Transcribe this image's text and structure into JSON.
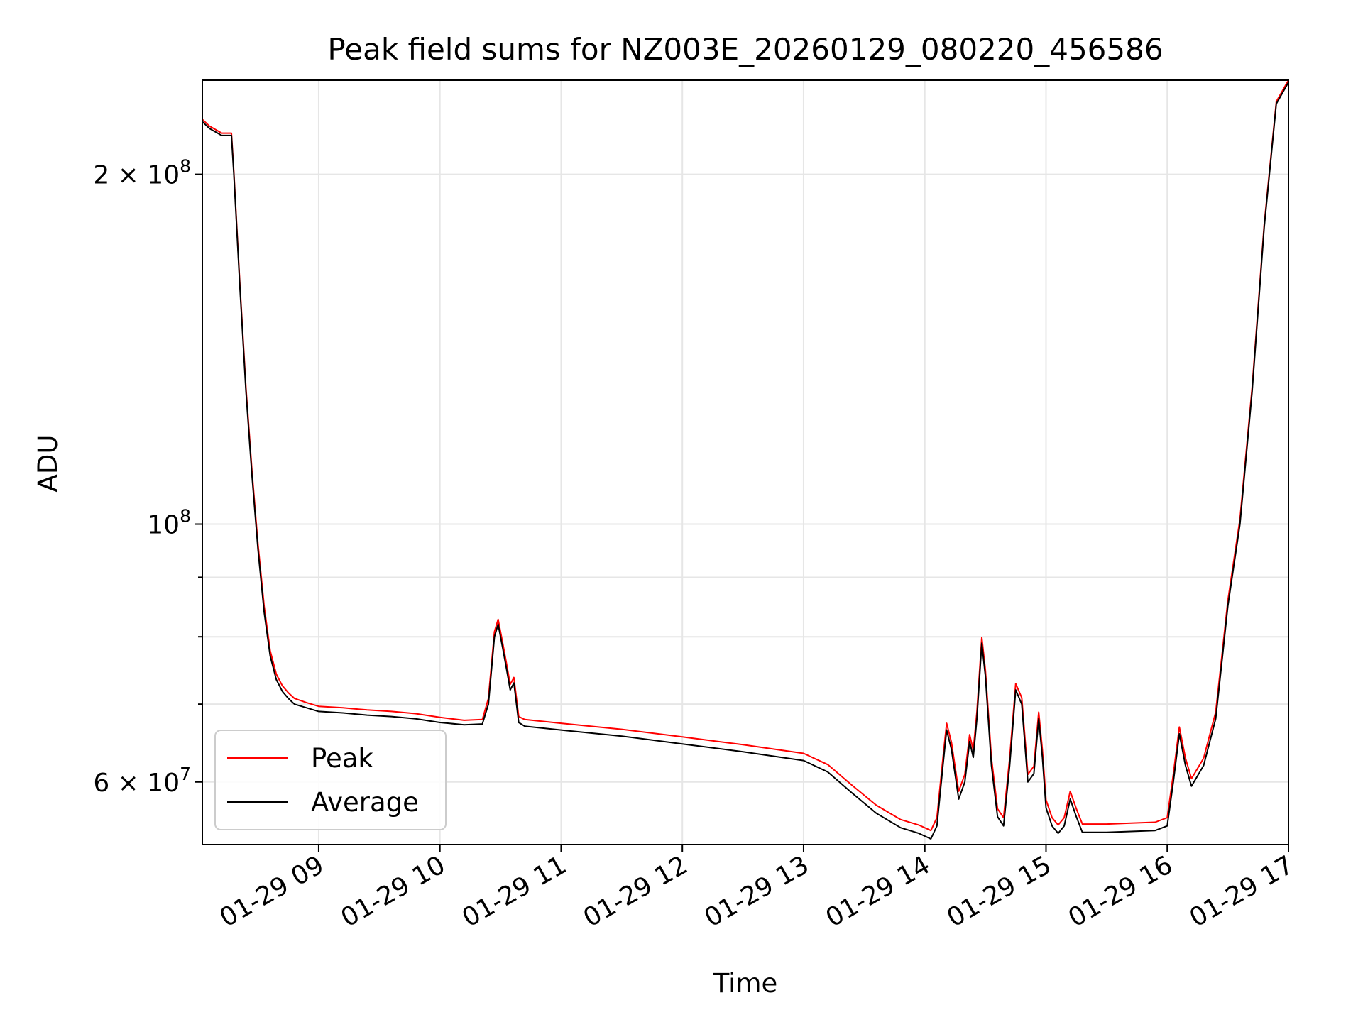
{
  "chart_data": {
    "type": "line",
    "title": "Peak field sums for NZ003E_20260129_080220_456586",
    "xlabel": "Time",
    "ylabel": "ADU",
    "yscale": "log",
    "xlim": [
      8.04,
      17.0
    ],
    "ylim": [
      53000000.0,
      241000000.0
    ],
    "x_ticks": [
      {
        "value": 9,
        "label": "01-29 09"
      },
      {
        "value": 10,
        "label": "01-29 10"
      },
      {
        "value": 11,
        "label": "01-29 11"
      },
      {
        "value": 12,
        "label": "01-29 12"
      },
      {
        "value": 13,
        "label": "01-29 13"
      },
      {
        "value": 14,
        "label": "01-29 14"
      },
      {
        "value": 15,
        "label": "01-29 15"
      },
      {
        "value": 16,
        "label": "01-29 16"
      },
      {
        "value": 17,
        "label": "01-29 17"
      }
    ],
    "y_ticks": [
      {
        "value": 200000000.0,
        "base": "2 × 10",
        "exp": "8"
      },
      {
        "value": 100000000.0,
        "base": "10",
        "exp": "8"
      },
      {
        "value": 60000000.0,
        "base": "6 × 10",
        "exp": "7"
      }
    ],
    "y_minor_ticks": [
      70000000.0,
      80000000.0,
      90000000.0
    ],
    "grid": true,
    "legend_position": "lower-left",
    "series": [
      {
        "name": "Average",
        "color": "#000000",
        "x": [
          8.04,
          8.1,
          8.2,
          8.28,
          8.3,
          8.35,
          8.4,
          8.45,
          8.5,
          8.55,
          8.6,
          8.65,
          8.7,
          8.75,
          8.8,
          8.9,
          9.0,
          9.2,
          9.4,
          9.6,
          9.8,
          10.0,
          10.2,
          10.35,
          10.4,
          10.45,
          10.48,
          10.52,
          10.55,
          10.58,
          10.61,
          10.65,
          10.7,
          11.0,
          11.5,
          12.0,
          12.5,
          13.0,
          13.2,
          13.4,
          13.6,
          13.8,
          13.95,
          14.05,
          14.1,
          14.15,
          14.18,
          14.22,
          14.28,
          14.33,
          14.37,
          14.4,
          14.43,
          14.47,
          14.5,
          14.55,
          14.6,
          14.65,
          14.7,
          14.75,
          14.8,
          14.85,
          14.9,
          14.94,
          14.97,
          15.0,
          15.05,
          15.1,
          15.15,
          15.2,
          15.25,
          15.3,
          15.5,
          15.7,
          15.9,
          16.0,
          16.05,
          16.1,
          16.15,
          16.2,
          16.3,
          16.4,
          16.45,
          16.5,
          16.6,
          16.7,
          16.8,
          16.9,
          17.0
        ],
        "values": [
          222000000.0,
          219000000.0,
          216000000.0,
          216000000.0,
          200000000.0,
          160000000.0,
          130000000.0,
          110000000.0,
          95000000.0,
          84000000.0,
          77000000.0,
          73500000.0,
          71800000.0,
          70800000.0,
          70000000.0,
          69500000.0,
          69000000.0,
          68800000.0,
          68500000.0,
          68300000.0,
          68000000.0,
          67500000.0,
          67200000.0,
          67300000.0,
          70000000.0,
          80000000.0,
          82000000.0,
          78000000.0,
          75000000.0,
          72000000.0,
          73000000.0,
          67500000.0,
          67000000.0,
          66500000.0,
          65700000.0,
          64700000.0,
          63700000.0,
          62600000.0,
          61200000.0,
          58700000.0,
          56400000.0,
          54800000.0,
          54200000.0,
          53600000.0,
          55000000.0,
          62000000.0,
          66500000.0,
          64000000.0,
          58000000.0,
          60000000.0,
          65000000.0,
          63000000.0,
          68000000.0,
          79000000.0,
          74000000.0,
          62000000.0,
          56000000.0,
          55000000.0,
          62000000.0,
          72000000.0,
          70000000.0,
          60000000.0,
          61000000.0,
          68000000.0,
          63000000.0,
          57000000.0,
          55000000.0,
          54200000.0,
          55000000.0,
          58000000.0,
          56000000.0,
          54300000.0,
          54300000.0,
          54400000.0,
          54500000.0,
          55000000.0,
          60000000.0,
          66000000.0,
          62000000.0,
          59500000.0,
          62000000.0,
          68000000.0,
          76000000.0,
          85000000.0,
          100000000.0,
          130000000.0,
          180000000.0,
          230000000.0,
          240000000.0
        ]
      },
      {
        "name": "Peak",
        "color": "#ff0000",
        "x": [
          8.04,
          8.1,
          8.2,
          8.28,
          8.3,
          8.35,
          8.4,
          8.45,
          8.5,
          8.55,
          8.6,
          8.65,
          8.7,
          8.75,
          8.8,
          8.9,
          9.0,
          9.2,
          9.4,
          9.6,
          9.8,
          10.0,
          10.2,
          10.35,
          10.4,
          10.45,
          10.48,
          10.52,
          10.55,
          10.58,
          10.61,
          10.65,
          10.7,
          11.0,
          11.5,
          12.0,
          12.5,
          13.0,
          13.2,
          13.4,
          13.6,
          13.8,
          13.95,
          14.05,
          14.1,
          14.15,
          14.18,
          14.22,
          14.28,
          14.33,
          14.37,
          14.4,
          14.43,
          14.47,
          14.5,
          14.55,
          14.6,
          14.65,
          14.7,
          14.75,
          14.8,
          14.85,
          14.9,
          14.94,
          14.97,
          15.0,
          15.05,
          15.1,
          15.15,
          15.2,
          15.25,
          15.3,
          15.5,
          15.7,
          15.9,
          16.0,
          16.05,
          16.1,
          16.15,
          16.2,
          16.3,
          16.4,
          16.45,
          16.5,
          16.6,
          16.7,
          16.8,
          16.9,
          17.0
        ],
        "values": [
          223000000.0,
          220000000.0,
          217000000.0,
          217000000.0,
          201000000.0,
          161000000.0,
          131000000.0,
          111000000.0,
          96000000.0,
          85000000.0,
          77800000.0,
          74300000.0,
          72600000.0,
          71600000.0,
          70800000.0,
          70200000.0,
          69700000.0,
          69500000.0,
          69200000.0,
          69000000.0,
          68700000.0,
          68200000.0,
          67800000.0,
          67900000.0,
          70800000.0,
          80800000.0,
          82800000.0,
          78800000.0,
          75800000.0,
          72800000.0,
          73800000.0,
          68300000.0,
          67900000.0,
          67400000.0,
          66600000.0,
          65600000.0,
          64600000.0,
          63500000.0,
          62100000.0,
          59600000.0,
          57300000.0,
          55700000.0,
          55100000.0,
          54500000.0,
          55900000.0,
          62900000.0,
          67400000.0,
          64900000.0,
          58900000.0,
          60900000.0,
          65900000.0,
          63900000.0,
          68900000.0,
          79900000.0,
          74900000.0,
          62900000.0,
          56900000.0,
          55900000.0,
          62900000.0,
          72900000.0,
          70900000.0,
          60900000.0,
          61900000.0,
          68900000.0,
          63900000.0,
          57900000.0,
          55900000.0,
          55100000.0,
          55900000.0,
          58900000.0,
          56900000.0,
          55200000.0,
          55200000.0,
          55300000.0,
          55400000.0,
          55900000.0,
          60900000.0,
          66900000.0,
          62900000.0,
          60400000.0,
          62900000.0,
          68900000.0,
          76900000.0,
          85900000.0,
          101000000.0,
          131000000.0,
          181000000.0,
          231000000.0,
          241000000.0
        ]
      }
    ]
  }
}
